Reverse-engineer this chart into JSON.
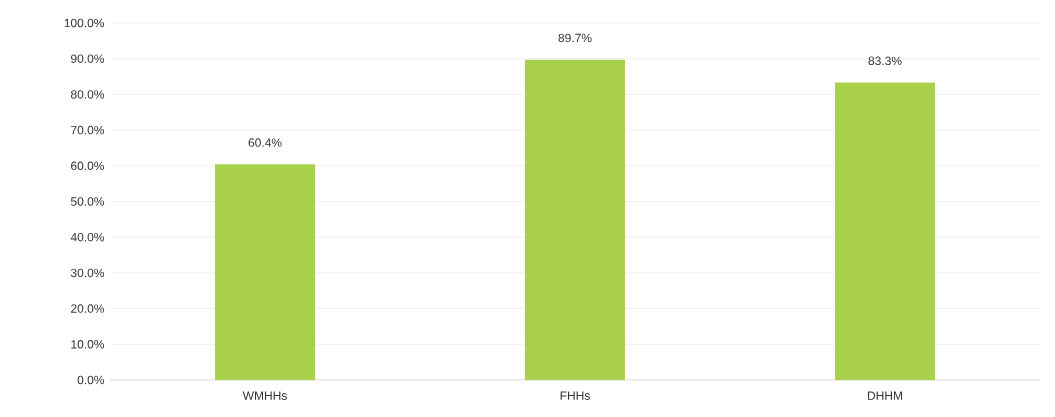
{
  "chart_data": {
    "type": "bar",
    "categories": [
      "WMHHs",
      "FHHs",
      "DHHM"
    ],
    "values": [
      60.4,
      89.7,
      83.3
    ],
    "color": "#a9d04b",
    "value_labels": [
      "60.4%",
      "89.7%",
      "83.3%"
    ],
    "ylim": [
      0,
      100
    ],
    "yticks": [
      {
        "value": 0,
        "label": "0.0%"
      },
      {
        "value": 10,
        "label": "10.0%"
      },
      {
        "value": 20,
        "label": "20.0%"
      },
      {
        "value": 30,
        "label": "30.0%"
      },
      {
        "value": 40,
        "label": "40.0%"
      },
      {
        "value": 50,
        "label": "50.0%"
      },
      {
        "value": 60,
        "label": "60.0%"
      },
      {
        "value": 70,
        "label": "70.0%"
      },
      {
        "value": 80,
        "label": "80.0%"
      },
      {
        "value": 90,
        "label": "90.0%"
      },
      {
        "value": 100,
        "label": "100.0%"
      }
    ],
    "grid": "y"
  }
}
